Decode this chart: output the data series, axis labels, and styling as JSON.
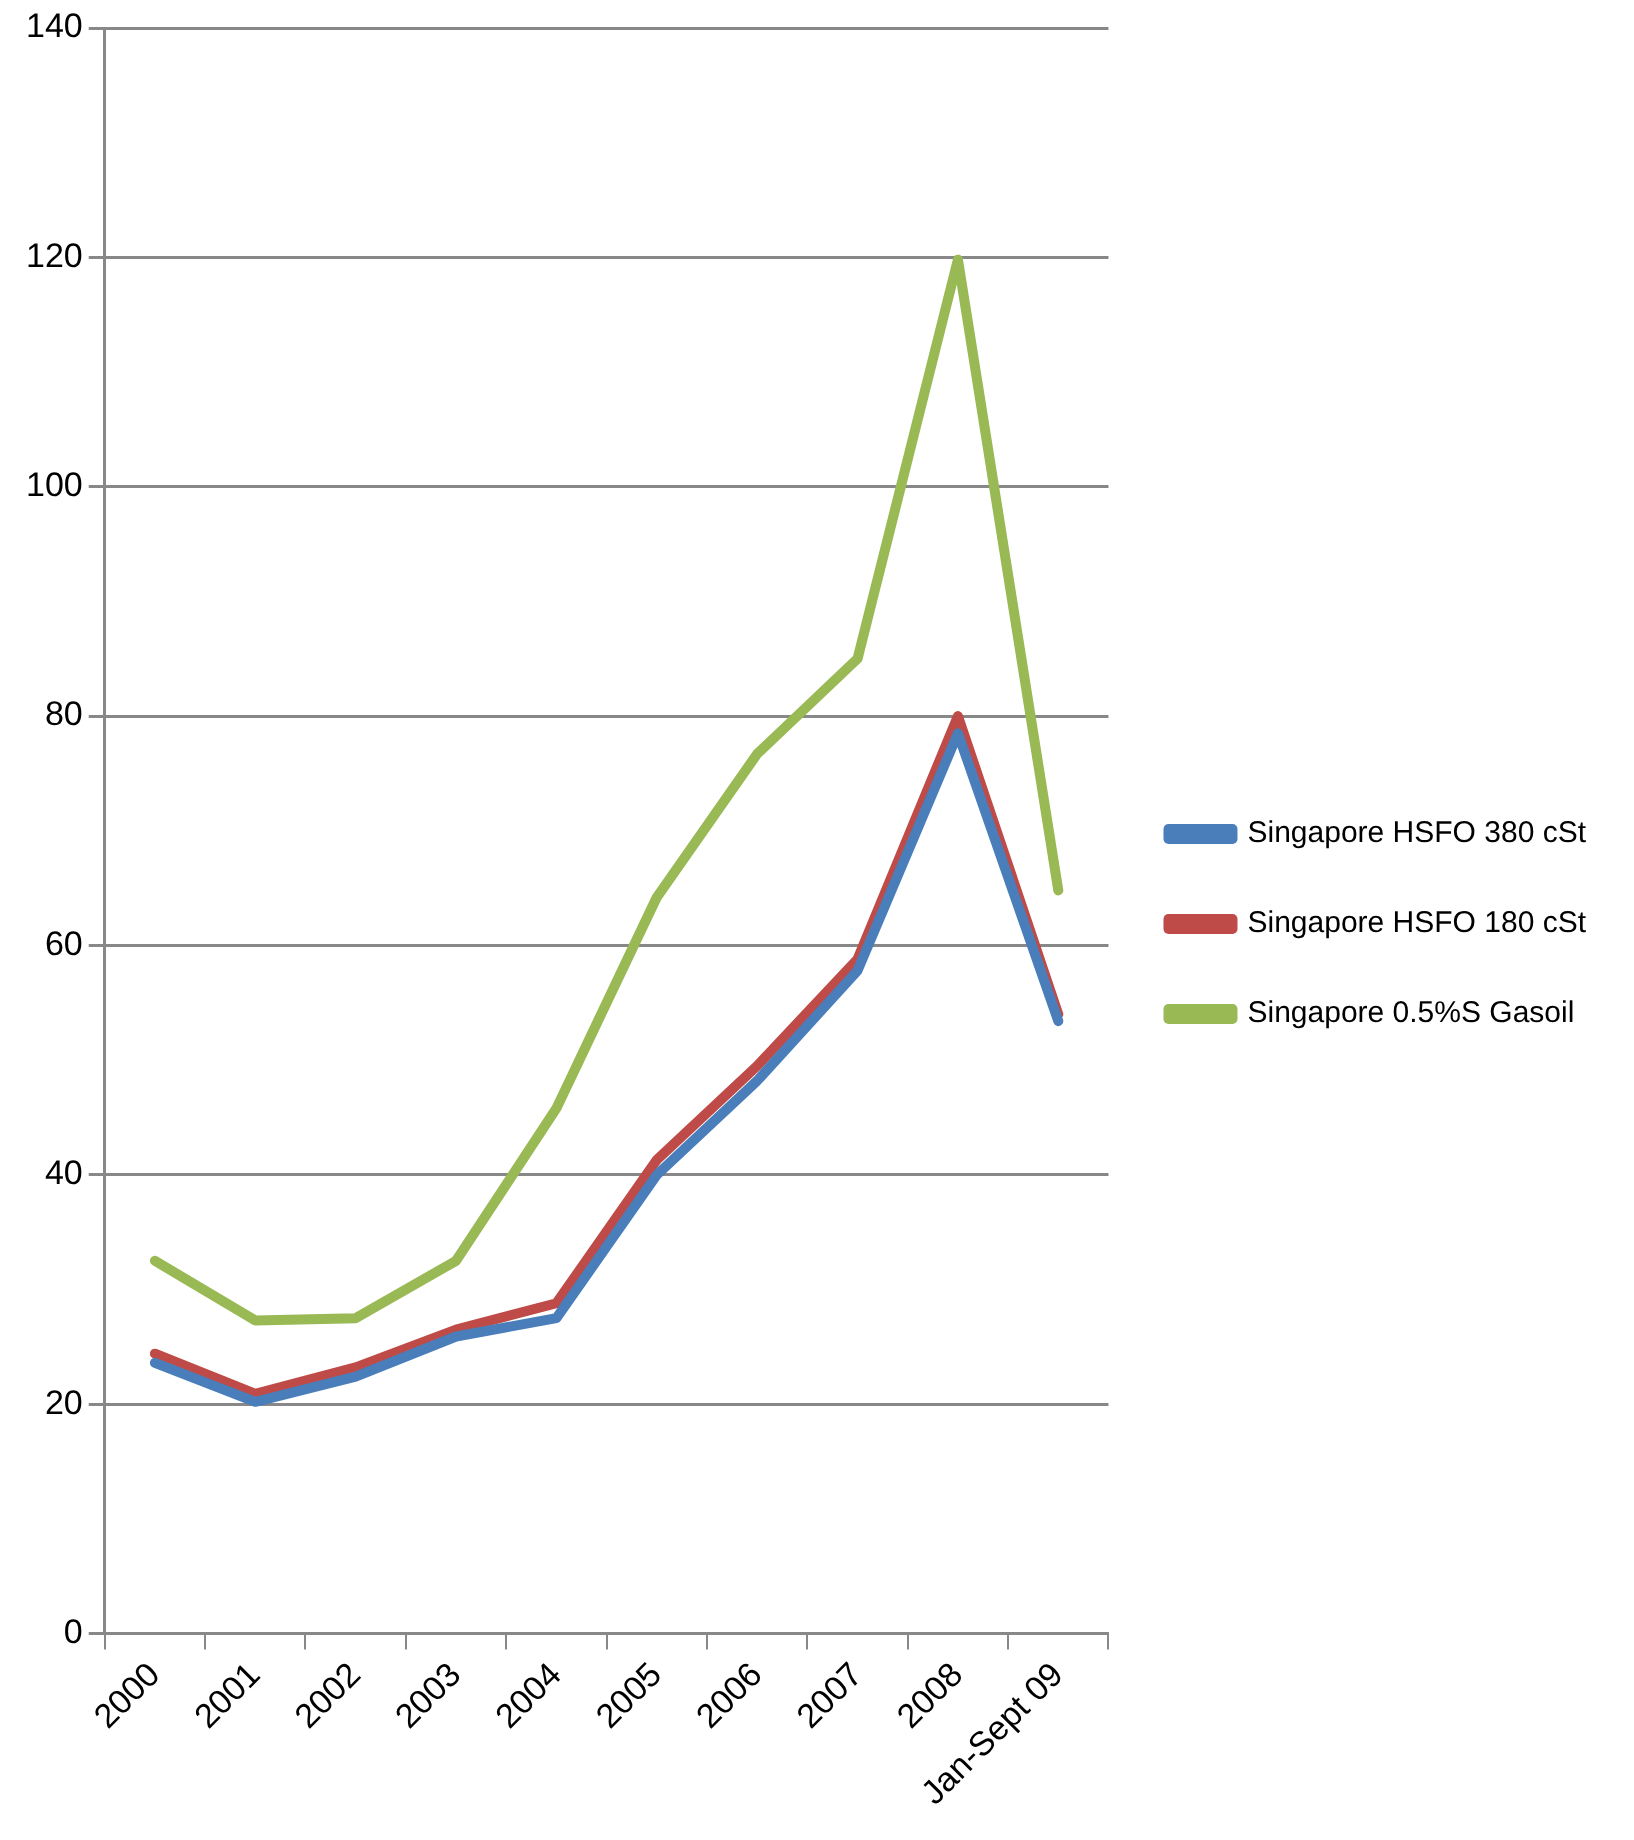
{
  "chart_data": {
    "type": "line",
    "categories": [
      "2000",
      "2001",
      "2002",
      "2003",
      "2004",
      "2005",
      "2006",
      "2007",
      "2008",
      "Jan-Sept 09"
    ],
    "series": [
      {
        "name": "Singapore HSFO 380 cSt",
        "color": "#4a7ebb",
        "values": [
          23.6,
          20.2,
          22.4,
          25.9,
          27.5,
          40.0,
          48.2,
          57.8,
          78.5,
          53.4
        ]
      },
      {
        "name": "Singapore HSFO 180 cSt",
        "color": "#be4b48",
        "values": [
          24.4,
          20.9,
          23.2,
          26.5,
          28.8,
          41.3,
          49.5,
          58.8,
          80.0,
          54.0
        ]
      },
      {
        "name": "Singapore 0.5%S Gasoil",
        "color": "#98b954",
        "values": [
          32.5,
          27.3,
          27.5,
          32.5,
          45.8,
          64.2,
          76.7,
          85.0,
          119.8,
          64.8
        ]
      }
    ],
    "ylim": [
      0,
      140
    ],
    "yticks": [
      0,
      20,
      40,
      60,
      80,
      100,
      120,
      140
    ],
    "grid": "y",
    "legend": "right",
    "marker": "none",
    "line_style": "solid"
  }
}
